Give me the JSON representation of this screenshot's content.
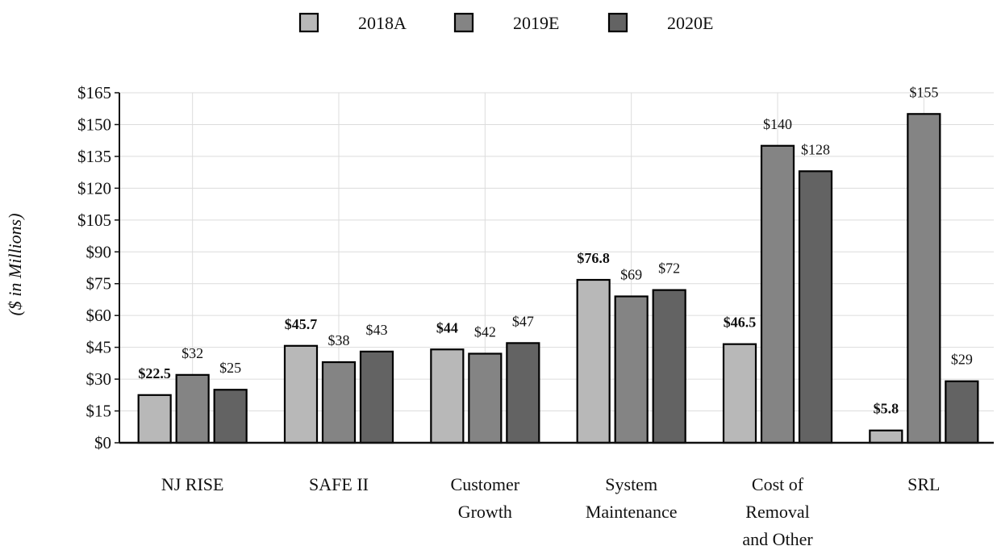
{
  "chart_data": {
    "type": "bar",
    "title": "",
    "xlabel": "",
    "ylabel": "($ in Millions)",
    "ylim": [
      0,
      165
    ],
    "yticks": [
      0,
      15,
      30,
      45,
      60,
      75,
      90,
      105,
      120,
      135,
      150,
      165
    ],
    "ytick_labels": [
      "$0",
      "$15",
      "$30",
      "$45",
      "$60",
      "$75",
      "$90",
      "$105",
      "$120",
      "$135",
      "$150",
      "$165"
    ],
    "grid": true,
    "legend_position": "top-center",
    "categories": [
      [
        "NJ RISE"
      ],
      [
        "SAFE II"
      ],
      [
        "Customer",
        "Growth"
      ],
      [
        "System",
        "Maintenance"
      ],
      [
        "Cost of",
        "Removal",
        "and Other"
      ],
      [
        "SRL"
      ]
    ],
    "series": [
      {
        "name": "2018A",
        "color": "#b8b8b8",
        "values": [
          22.5,
          45.7,
          44,
          76.8,
          46.5,
          5.8
        ],
        "labels": [
          "$22.5",
          "$45.7",
          "$44",
          "$76.8",
          "$46.5",
          "$5.8"
        ],
        "label_bold": true
      },
      {
        "name": "2019E",
        "color": "#848484",
        "values": [
          32,
          38,
          42,
          69,
          140,
          155
        ],
        "labels": [
          "$32",
          "$38",
          "$42",
          "$69",
          "$140",
          "$155"
        ],
        "label_bold": false
      },
      {
        "name": "2020E",
        "color": "#636363",
        "values": [
          25,
          43,
          47,
          72,
          128,
          29
        ],
        "labels": [
          "$25",
          "$43",
          "$47",
          "$72",
          "$128",
          "$29"
        ],
        "label_bold": false
      }
    ]
  }
}
